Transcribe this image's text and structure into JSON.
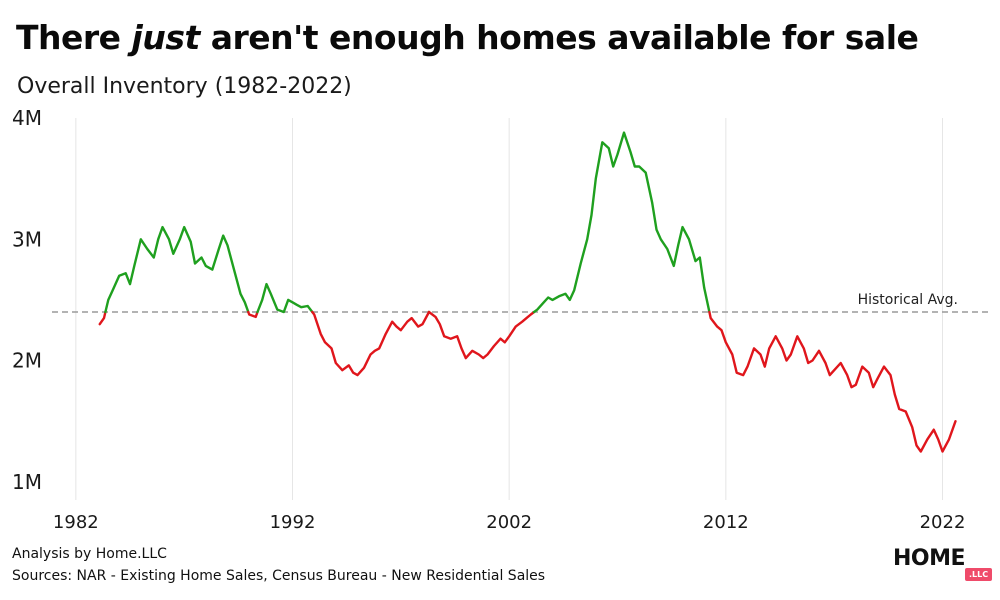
{
  "header": {
    "title_pre": "There ",
    "title_em": "just",
    "title_post": " aren't enough homes available for sale",
    "subtitle": "Overall Inventory (1982-2022)"
  },
  "footer": {
    "credit": "Analysis by Home.LLC",
    "sources": "Sources: NAR - Existing Home Sales, Census Bureau - New Residential Sales"
  },
  "brand": {
    "word": "HOME",
    "tag": ".LLC"
  },
  "colors": {
    "above": "#1fa01f",
    "below": "#e0161c",
    "reference": "#9a9a9a",
    "grid": "#e6e6e6"
  },
  "chart_data": {
    "type": "line",
    "title": "There just aren't enough homes available for sale",
    "subtitle": "Overall Inventory (1982-2022)",
    "xlabel": "",
    "ylabel": "",
    "xlim": [
      1980.9,
      2024.1
    ],
    "ylim": [
      0.85,
      4.0
    ],
    "x_ticks": [
      1982,
      1992,
      2002,
      2012,
      2022
    ],
    "x_tick_labels": [
      "1982",
      "1992",
      "2002",
      "2012",
      "2022"
    ],
    "y_ticks": [
      1,
      2,
      3,
      4
    ],
    "y_tick_labels": [
      "1M",
      "2M",
      "3M",
      "4M"
    ],
    "units": "millions of homes",
    "grid": {
      "x": true,
      "y": false
    },
    "legend": "none",
    "reference_line": {
      "label": "Historical Avg.",
      "value": 2.4
    },
    "color_rule": "green above historical average, red below",
    "series": [
      {
        "x": [
          1983.1,
          1983.3,
          1983.5,
          1983.7,
          1984.0,
          1984.3,
          1984.5,
          1984.7,
          1985.0,
          1985.3,
          1985.6,
          1985.8,
          1986.0,
          1986.3,
          1986.5,
          1986.8,
          1987.0,
          1987.3,
          1987.5,
          1987.8,
          1988.0,
          1988.3,
          1988.6,
          1988.8,
          1989.0,
          1989.3,
          1989.6,
          1989.8,
          1990.0,
          1990.3,
          1990.6,
          1990.8,
          1991.0,
          1991.3,
          1991.6,
          1991.8,
          1992.0,
          1992.2,
          1992.4,
          1992.7,
          1993.0,
          1993.3,
          1993.5,
          1993.8,
          1994.0,
          1994.3,
          1994.6,
          1994.8,
          1995.0,
          1995.3,
          1995.6,
          1995.8,
          1996.0,
          1996.3,
          1996.6,
          1996.8,
          1997.0,
          1997.3,
          1997.5,
          1997.8,
          1998.0,
          1998.3,
          1998.6,
          1998.8,
          1999.0,
          1999.3,
          1999.6,
          1999.8,
          2000.0,
          2000.3,
          2000.6,
          2000.8,
          2001.0,
          2001.3,
          2001.6,
          2001.8,
          2002.0,
          2002.3,
          2002.6,
          2002.8,
          2003.0,
          2003.3,
          2003.6,
          2003.8,
          2004.0,
          2004.3,
          2004.6,
          2004.8,
          2005.0,
          2005.3,
          2005.6,
          2005.8,
          2006.0,
          2006.3,
          2006.6,
          2006.8,
          2007.0,
          2007.3,
          2007.6,
          2007.8,
          2008.0,
          2008.3,
          2008.6,
          2008.8,
          2009.0,
          2009.3,
          2009.6,
          2009.8,
          2010.0,
          2010.3,
          2010.6,
          2010.8,
          2011.0,
          2011.3,
          2011.6,
          2011.8,
          2012.0,
          2012.3,
          2012.5,
          2012.8,
          2013.0,
          2013.3,
          2013.6,
          2013.8,
          2014.0,
          2014.3,
          2014.6,
          2014.8,
          2015.0,
          2015.3,
          2015.6,
          2015.8,
          2016.0,
          2016.3,
          2016.6,
          2016.8,
          2017.0,
          2017.3,
          2017.6,
          2017.8,
          2018.0,
          2018.3,
          2018.6,
          2018.8,
          2019.0,
          2019.3,
          2019.6,
          2019.8,
          2020.0,
          2020.3,
          2020.6,
          2020.8,
          2021.0,
          2021.3,
          2021.6,
          2021.8,
          2022.0,
          2022.3,
          2022.6
        ],
        "values": [
          2.3,
          2.35,
          2.5,
          2.58,
          2.7,
          2.72,
          2.63,
          2.78,
          3.0,
          2.92,
          2.85,
          3.0,
          3.1,
          3.0,
          2.88,
          3.0,
          3.1,
          2.98,
          2.8,
          2.85,
          2.78,
          2.75,
          2.92,
          3.03,
          2.95,
          2.75,
          2.55,
          2.48,
          2.38,
          2.36,
          2.5,
          2.63,
          2.55,
          2.42,
          2.4,
          2.5,
          2.48,
          2.46,
          2.44,
          2.45,
          2.38,
          2.22,
          2.15,
          2.1,
          1.98,
          1.92,
          1.96,
          1.9,
          1.88,
          1.94,
          2.05,
          2.08,
          2.1,
          2.22,
          2.32,
          2.28,
          2.25,
          2.32,
          2.35,
          2.28,
          2.3,
          2.4,
          2.36,
          2.3,
          2.2,
          2.18,
          2.2,
          2.1,
          2.02,
          2.08,
          2.05,
          2.02,
          2.05,
          2.12,
          2.18,
          2.15,
          2.2,
          2.28,
          2.32,
          2.35,
          2.38,
          2.42,
          2.48,
          2.52,
          2.5,
          2.53,
          2.55,
          2.5,
          2.58,
          2.8,
          3.0,
          3.2,
          3.5,
          3.8,
          3.75,
          3.6,
          3.7,
          3.88,
          3.72,
          3.6,
          3.6,
          3.55,
          3.3,
          3.08,
          3.0,
          2.92,
          2.78,
          2.95,
          3.1,
          3.0,
          2.82,
          2.85,
          2.6,
          2.35,
          2.28,
          2.25,
          2.15,
          2.05,
          1.9,
          1.88,
          1.95,
          2.1,
          2.05,
          1.95,
          2.1,
          2.2,
          2.1,
          2.0,
          2.05,
          2.2,
          2.1,
          1.98,
          2.0,
          2.08,
          1.98,
          1.88,
          1.92,
          1.98,
          1.88,
          1.78,
          1.8,
          1.95,
          1.9,
          1.78,
          1.85,
          1.95,
          1.88,
          1.72,
          1.6,
          1.58,
          1.45,
          1.3,
          1.25,
          1.35,
          1.43,
          1.35,
          1.25,
          1.35,
          1.5
        ]
      }
    ]
  }
}
